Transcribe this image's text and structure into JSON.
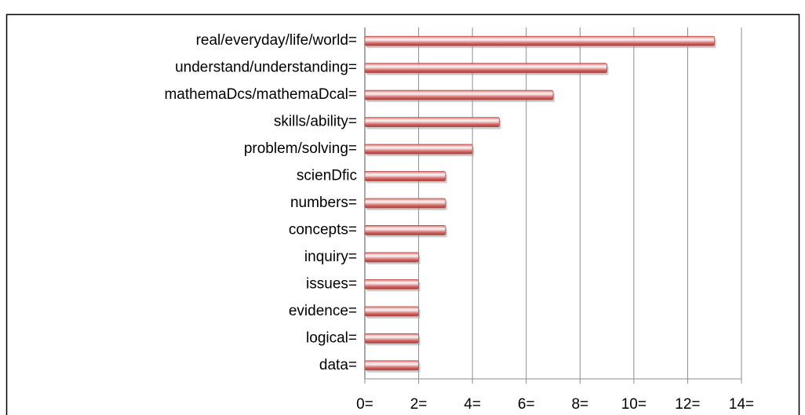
{
  "chart_data": {
    "type": "bar",
    "orientation": "horizontal",
    "categories": [
      "real/everyday/life/world=",
      "understand/understanding=",
      "mathemaDcs/mathemaDcal=",
      "skills/ability=",
      "problem/solving=",
      "scienDfic ",
      "numbers=",
      "concepts=",
      "inquiry=",
      "issues=",
      "evidence=",
      "logical=",
      "data="
    ],
    "values": [
      13,
      9,
      7,
      5,
      4,
      3,
      3,
      3,
      2,
      2,
      2,
      2,
      2
    ],
    "color": "#d9706e",
    "xlim": [
      0,
      14
    ],
    "xticks": [
      {
        "value": 0,
        "label": "0="
      },
      {
        "value": 2,
        "label": "2="
      },
      {
        "value": 4,
        "label": "4="
      },
      {
        "value": 6,
        "label": "6="
      },
      {
        "value": 8,
        "label": "8="
      },
      {
        "value": 10,
        "label": "10="
      },
      {
        "value": 12,
        "label": "12="
      },
      {
        "value": 14,
        "label": "14="
      }
    ],
    "grid": true
  }
}
